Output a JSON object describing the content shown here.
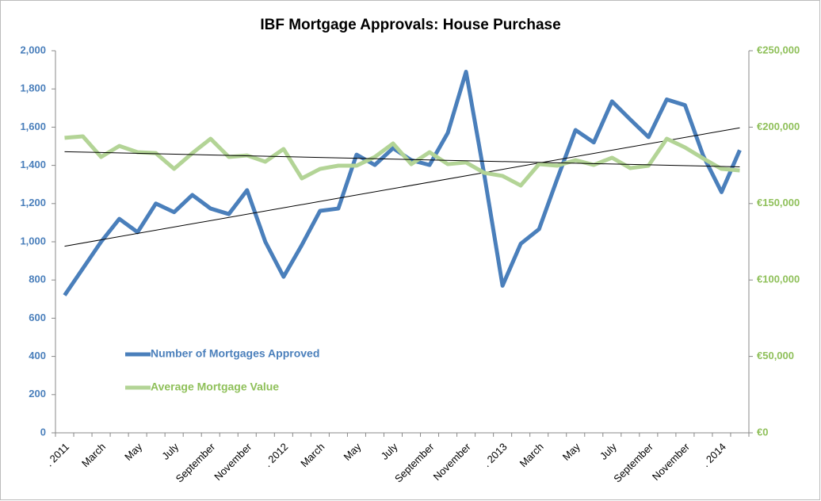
{
  "chart_data": {
    "type": "line",
    "title": "IBF Mortgage Approvals: House Purchase",
    "categories": [
      ". 2011",
      null,
      "March",
      null,
      "May",
      null,
      "July",
      null,
      "September",
      null,
      "November",
      null,
      ". 2012",
      null,
      "March",
      null,
      "May",
      null,
      "July",
      null,
      "September",
      null,
      "November",
      null,
      ". 2013",
      null,
      "March",
      null,
      "May",
      null,
      "July",
      null,
      "September",
      null,
      "November",
      null,
      ". 2014",
      null
    ],
    "series": [
      {
        "name": "Number of Mortgages Approved",
        "color": "#4a7fbb",
        "axis": "y",
        "values": [
          720,
          860,
          1000,
          1120,
          1050,
          1200,
          1155,
          1245,
          1174,
          1145,
          1270,
          1000,
          817,
          983,
          1162,
          1174,
          1456,
          1402,
          1490,
          1427,
          1402,
          1570,
          1890,
          1350,
          770,
          990,
          1066,
          1330,
          1585,
          1520,
          1735,
          1640,
          1548,
          1745,
          1715,
          1450,
          1260,
          1480
        ]
      },
      {
        "name": "Average Mortgage Value",
        "color": "#b3d496",
        "axis": "y2",
        "values": [
          193000,
          194000,
          180500,
          187700,
          183600,
          183000,
          172700,
          183000,
          192400,
          180500,
          181500,
          177400,
          185700,
          166500,
          172700,
          174800,
          174800,
          180500,
          189300,
          175800,
          183600,
          175800,
          176900,
          170100,
          168100,
          161800,
          175800,
          174800,
          178400,
          175300,
          180000,
          173200,
          174800,
          192400,
          186700,
          179500,
          172700,
          171700
        ]
      }
    ],
    "ylim": [
      0,
      2000
    ],
    "yticks": [
      0,
      200,
      400,
      600,
      800,
      {
        "value": 1000,
        "label": "1,000"
      },
      {
        "value": 1200,
        "label": "1,200"
      },
      {
        "value": 1400,
        "label": "1,400"
      },
      {
        "value": 1600,
        "label": "1,600"
      },
      {
        "value": 1800,
        "label": "1,800"
      },
      {
        "value": 2000,
        "label": "2,000"
      }
    ],
    "y2lim": [
      0,
      250000
    ],
    "y2ticks": [
      {
        "value": 0,
        "label": "€0"
      },
      {
        "value": 50000,
        "label": "€50,000"
      },
      {
        "value": 100000,
        "label": "€100,000"
      },
      {
        "value": 150000,
        "label": "€150,000"
      },
      {
        "value": 200000,
        "label": "€200,000"
      },
      {
        "value": 250000,
        "label": "€250,000"
      }
    ],
    "trendline": true,
    "legend": "lower-left",
    "grid": false
  }
}
